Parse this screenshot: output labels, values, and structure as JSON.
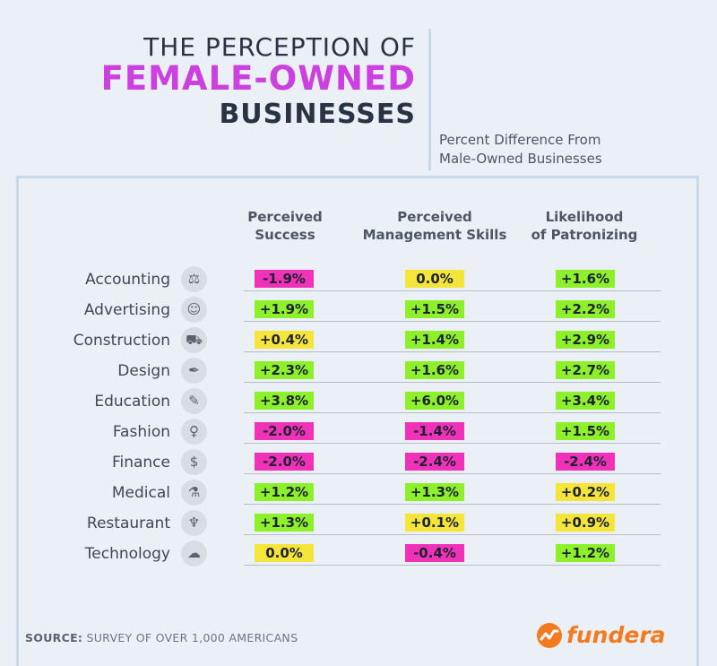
{
  "title": {
    "line1": "THE PERCEPTION OF",
    "line2": "FEMALE-OWNED",
    "line3": "BUSINESSES",
    "subtitle_line1": "Percent Difference From",
    "subtitle_line2": "Male-Owned Businesses"
  },
  "colors": {
    "positive": "#8ef02b",
    "neutral": "#f5e53a",
    "negative": "#f032b8",
    "accent": "#cc3fe0",
    "brand": "#f47a20"
  },
  "chart_data": {
    "type": "table",
    "title": "THE PERCEPTION OF FEMALE-OWNED BUSINESSES",
    "subtitle": "Percent Difference From Male-Owned Businesses",
    "columns": [
      {
        "line1": "Perceived",
        "line2": "Success"
      },
      {
        "line1": "Perceived",
        "line2": "Management Skills"
      },
      {
        "line1": "Likelihood",
        "line2": "of Patronizing"
      }
    ],
    "rows": [
      {
        "label": "Accounting",
        "icon": "scales-icon",
        "values": [
          -1.9,
          0.0,
          1.6
        ],
        "labels": [
          "-1.9%",
          "0.0%",
          "+1.6%"
        ]
      },
      {
        "label": "Advertising",
        "icon": "head-idea-icon",
        "values": [
          1.9,
          1.5,
          2.2
        ],
        "labels": [
          "+1.9%",
          "+1.5%",
          "+2.2%"
        ]
      },
      {
        "label": "Construction",
        "icon": "wheelbarrow-icon",
        "values": [
          0.4,
          1.4,
          2.9
        ],
        "labels": [
          "+0.4%",
          "+1.4%",
          "+2.9%"
        ]
      },
      {
        "label": "Design",
        "icon": "pen-tool-icon",
        "values": [
          2.3,
          1.6,
          2.7
        ],
        "labels": [
          "+2.3%",
          "+1.6%",
          "+2.7%"
        ]
      },
      {
        "label": "Education",
        "icon": "pencil-icon",
        "values": [
          3.8,
          6.0,
          3.4
        ],
        "labels": [
          "+3.8%",
          "+6.0%",
          "+3.4%"
        ]
      },
      {
        "label": "Fashion",
        "icon": "dress-icon",
        "values": [
          -2.0,
          -1.4,
          1.5
        ],
        "labels": [
          "-2.0%",
          "-1.4%",
          "+1.5%"
        ]
      },
      {
        "label": "Finance",
        "icon": "coin-hand-icon",
        "values": [
          -2.0,
          -2.4,
          -2.4
        ],
        "labels": [
          "-2.0%",
          "-2.4%",
          "-2.4%"
        ]
      },
      {
        "label": "Medical",
        "icon": "microscope-icon",
        "values": [
          1.2,
          1.3,
          0.2
        ],
        "labels": [
          "+1.2%",
          "+1.3%",
          "+0.2%"
        ]
      },
      {
        "label": "Restaurant",
        "icon": "wine-glass-icon",
        "values": [
          1.3,
          0.1,
          0.9
        ],
        "labels": [
          "+1.3%",
          "+0.1%",
          "+0.9%"
        ]
      },
      {
        "label": "Technology",
        "icon": "cloud-device-icon",
        "values": [
          0.0,
          -0.4,
          1.2
        ],
        "labels": [
          "0.0%",
          "-0.4%",
          "+1.2%"
        ]
      }
    ]
  },
  "footer": {
    "source_label": "SOURCE:",
    "source_text": "SURVEY OF OVER 1,000 AMERICANS"
  },
  "logo": {
    "text": "fundera"
  }
}
